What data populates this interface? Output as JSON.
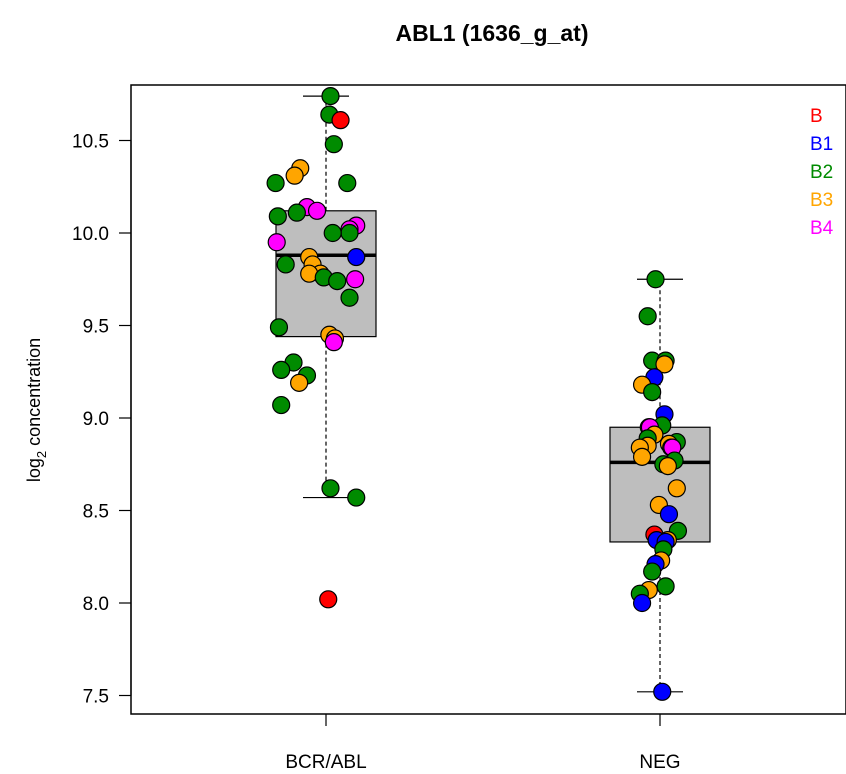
{
  "chart_data": {
    "type": "box",
    "title": "ABL1 (1636_g_at)",
    "ylabel_main": "log",
    "ylabel_sub": "2",
    "ylabel_rest": " concentration",
    "ylim": [
      7.4,
      10.8
    ],
    "yticks": [
      {
        "value": 7.5,
        "label": "7.5"
      },
      {
        "value": 8.0,
        "label": "8.0"
      },
      {
        "value": 8.5,
        "label": "8.5"
      },
      {
        "value": 9.0,
        "label": "9.0"
      },
      {
        "value": 9.5,
        "label": "9.5"
      },
      {
        "value": 10.0,
        "label": "10.0"
      },
      {
        "value": 10.5,
        "label": "10.5"
      }
    ],
    "categories": [
      "BCR/ABL",
      "NEG"
    ],
    "boxes": [
      {
        "category": "BCR/ABL",
        "whisker_low": 8.57,
        "q1": 9.44,
        "median": 9.88,
        "q3": 10.12,
        "whisker_high": 10.74
      },
      {
        "category": "NEG",
        "whisker_low": 7.52,
        "q1": 8.33,
        "median": 8.76,
        "q3": 8.95,
        "whisker_high": 9.75
      }
    ],
    "legend": [
      {
        "label": "B",
        "color": "#ff0000"
      },
      {
        "label": "B1",
        "color": "#0000ff"
      },
      {
        "label": "B2",
        "color": "#008b00"
      },
      {
        "label": "B3",
        "color": "#ffa500"
      },
      {
        "label": "B4",
        "color": "#ff00ff"
      }
    ],
    "points": [
      {
        "category": "BCR/ABL",
        "jitter": 0.04,
        "value": 10.74,
        "group": "B2"
      },
      {
        "category": "BCR/ABL",
        "jitter": 0.03,
        "value": 10.64,
        "group": "B2"
      },
      {
        "category": "BCR/ABL",
        "jitter": 0.13,
        "value": 10.61,
        "group": "B"
      },
      {
        "category": "BCR/ABL",
        "jitter": 0.07,
        "value": 10.48,
        "group": "B2"
      },
      {
        "category": "BCR/ABL",
        "jitter": -0.23,
        "value": 10.35,
        "group": "B3"
      },
      {
        "category": "BCR/ABL",
        "jitter": -0.28,
        "value": 10.31,
        "group": "B3"
      },
      {
        "category": "BCR/ABL",
        "jitter": -0.45,
        "value": 10.27,
        "group": "B2"
      },
      {
        "category": "BCR/ABL",
        "jitter": 0.19,
        "value": 10.27,
        "group": "B2"
      },
      {
        "category": "BCR/ABL",
        "jitter": -0.17,
        "value": 10.14,
        "group": "B4"
      },
      {
        "category": "BCR/ABL",
        "jitter": -0.08,
        "value": 10.12,
        "group": "B4"
      },
      {
        "category": "BCR/ABL",
        "jitter": -0.26,
        "value": 10.11,
        "group": "B2"
      },
      {
        "category": "BCR/ABL",
        "jitter": -0.43,
        "value": 10.09,
        "group": "B2"
      },
      {
        "category": "BCR/ABL",
        "jitter": 0.27,
        "value": 10.04,
        "group": "B4"
      },
      {
        "category": "BCR/ABL",
        "jitter": 0.21,
        "value": 10.02,
        "group": "B4"
      },
      {
        "category": "BCR/ABL",
        "jitter": 0.21,
        "value": 10.0,
        "group": "B2"
      },
      {
        "category": "BCR/ABL",
        "jitter": 0.06,
        "value": 10.0,
        "group": "B2"
      },
      {
        "category": "BCR/ABL",
        "jitter": -0.44,
        "value": 9.95,
        "group": "B4"
      },
      {
        "category": "BCR/ABL",
        "jitter": -0.15,
        "value": 9.87,
        "group": "B3"
      },
      {
        "category": "BCR/ABL",
        "jitter": 0.27,
        "value": 9.87,
        "group": "B1"
      },
      {
        "category": "BCR/ABL",
        "jitter": -0.36,
        "value": 9.83,
        "group": "B2"
      },
      {
        "category": "BCR/ABL",
        "jitter": -0.12,
        "value": 9.83,
        "group": "B3"
      },
      {
        "category": "BCR/ABL",
        "jitter": -0.05,
        "value": 9.78,
        "group": "B3"
      },
      {
        "category": "BCR/ABL",
        "jitter": -0.15,
        "value": 9.78,
        "group": "B3"
      },
      {
        "category": "BCR/ABL",
        "jitter": -0.02,
        "value": 9.76,
        "group": "B2"
      },
      {
        "category": "BCR/ABL",
        "jitter": 0.26,
        "value": 9.75,
        "group": "B4"
      },
      {
        "category": "BCR/ABL",
        "jitter": 0.1,
        "value": 9.74,
        "group": "B2"
      },
      {
        "category": "BCR/ABL",
        "jitter": 0.21,
        "value": 9.65,
        "group": "B2"
      },
      {
        "category": "BCR/ABL",
        "jitter": -0.42,
        "value": 9.49,
        "group": "B2"
      },
      {
        "category": "BCR/ABL",
        "jitter": 0.03,
        "value": 9.45,
        "group": "B3"
      },
      {
        "category": "BCR/ABL",
        "jitter": 0.08,
        "value": 9.43,
        "group": "B3"
      },
      {
        "category": "BCR/ABL",
        "jitter": 0.07,
        "value": 9.41,
        "group": "B4"
      },
      {
        "category": "BCR/ABL",
        "jitter": -0.29,
        "value": 9.3,
        "group": "B2"
      },
      {
        "category": "BCR/ABL",
        "jitter": -0.4,
        "value": 9.26,
        "group": "B2"
      },
      {
        "category": "BCR/ABL",
        "jitter": -0.17,
        "value": 9.23,
        "group": "B2"
      },
      {
        "category": "BCR/ABL",
        "jitter": -0.24,
        "value": 9.19,
        "group": "B3"
      },
      {
        "category": "BCR/ABL",
        "jitter": -0.4,
        "value": 9.07,
        "group": "B2"
      },
      {
        "category": "BCR/ABL",
        "jitter": 0.04,
        "value": 8.62,
        "group": "B2"
      },
      {
        "category": "BCR/ABL",
        "jitter": 0.27,
        "value": 8.57,
        "group": "B2"
      },
      {
        "category": "BCR/ABL",
        "jitter": 0.02,
        "value": 8.02,
        "group": "B"
      },
      {
        "category": "NEG",
        "jitter": -0.04,
        "value": 9.75,
        "group": "B2"
      },
      {
        "category": "NEG",
        "jitter": -0.11,
        "value": 9.55,
        "group": "B2"
      },
      {
        "category": "NEG",
        "jitter": -0.07,
        "value": 9.31,
        "group": "B2"
      },
      {
        "category": "NEG",
        "jitter": 0.05,
        "value": 9.31,
        "group": "B2"
      },
      {
        "category": "NEG",
        "jitter": 0.04,
        "value": 9.29,
        "group": "B3"
      },
      {
        "category": "NEG",
        "jitter": -0.05,
        "value": 9.22,
        "group": "B1"
      },
      {
        "category": "NEG",
        "jitter": -0.16,
        "value": 9.18,
        "group": "B3"
      },
      {
        "category": "NEG",
        "jitter": -0.07,
        "value": 9.14,
        "group": "B2"
      },
      {
        "category": "NEG",
        "jitter": 0.04,
        "value": 9.02,
        "group": "B1"
      },
      {
        "category": "NEG",
        "jitter": 0.02,
        "value": 8.96,
        "group": "B2"
      },
      {
        "category": "NEG",
        "jitter": -0.1,
        "value": 8.95,
        "group": "B3"
      },
      {
        "category": "NEG",
        "jitter": -0.09,
        "value": 8.95,
        "group": "B4"
      },
      {
        "category": "NEG",
        "jitter": -0.05,
        "value": 8.91,
        "group": "B3"
      },
      {
        "category": "NEG",
        "jitter": -0.11,
        "value": 8.89,
        "group": "B2"
      },
      {
        "category": "NEG",
        "jitter": 0.15,
        "value": 8.87,
        "group": "B2"
      },
      {
        "category": "NEG",
        "jitter": 0.08,
        "value": 8.86,
        "group": "B3"
      },
      {
        "category": "NEG",
        "jitter": -0.11,
        "value": 8.85,
        "group": "B3"
      },
      {
        "category": "NEG",
        "jitter": -0.18,
        "value": 8.84,
        "group": "B3"
      },
      {
        "category": "NEG",
        "jitter": 0.1,
        "value": 8.84,
        "group": "B3"
      },
      {
        "category": "NEG",
        "jitter": 0.11,
        "value": 8.84,
        "group": "B4"
      },
      {
        "category": "NEG",
        "jitter": -0.16,
        "value": 8.79,
        "group": "B3"
      },
      {
        "category": "NEG",
        "jitter": 0.13,
        "value": 8.77,
        "group": "B2"
      },
      {
        "category": "NEG",
        "jitter": 0.03,
        "value": 8.75,
        "group": "B2"
      },
      {
        "category": "NEG",
        "jitter": 0.07,
        "value": 8.74,
        "group": "B3"
      },
      {
        "category": "NEG",
        "jitter": 0.15,
        "value": 8.62,
        "group": "B3"
      },
      {
        "category": "NEG",
        "jitter": -0.01,
        "value": 8.53,
        "group": "B3"
      },
      {
        "category": "NEG",
        "jitter": 0.08,
        "value": 8.48,
        "group": "B1"
      },
      {
        "category": "NEG",
        "jitter": 0.16,
        "value": 8.39,
        "group": "B2"
      },
      {
        "category": "NEG",
        "jitter": -0.05,
        "value": 8.37,
        "group": "B"
      },
      {
        "category": "NEG",
        "jitter": -0.03,
        "value": 8.34,
        "group": "B1"
      },
      {
        "category": "NEG",
        "jitter": 0.07,
        "value": 8.34,
        "group": "B3"
      },
      {
        "category": "NEG",
        "jitter": 0.05,
        "value": 8.33,
        "group": "B1"
      },
      {
        "category": "NEG",
        "jitter": 0.03,
        "value": 8.29,
        "group": "B2"
      },
      {
        "category": "NEG",
        "jitter": 0.01,
        "value": 8.23,
        "group": "B3"
      },
      {
        "category": "NEG",
        "jitter": -0.04,
        "value": 8.21,
        "group": "B1"
      },
      {
        "category": "NEG",
        "jitter": -0.07,
        "value": 8.17,
        "group": "B2"
      },
      {
        "category": "NEG",
        "jitter": 0.05,
        "value": 8.09,
        "group": "B2"
      },
      {
        "category": "NEG",
        "jitter": -0.1,
        "value": 8.07,
        "group": "B3"
      },
      {
        "category": "NEG",
        "jitter": -0.18,
        "value": 8.05,
        "group": "B2"
      },
      {
        "category": "NEG",
        "jitter": -0.16,
        "value": 8.0,
        "group": "B1"
      },
      {
        "category": "NEG",
        "jitter": 0.02,
        "value": 7.52,
        "group": "B1"
      }
    ]
  }
}
